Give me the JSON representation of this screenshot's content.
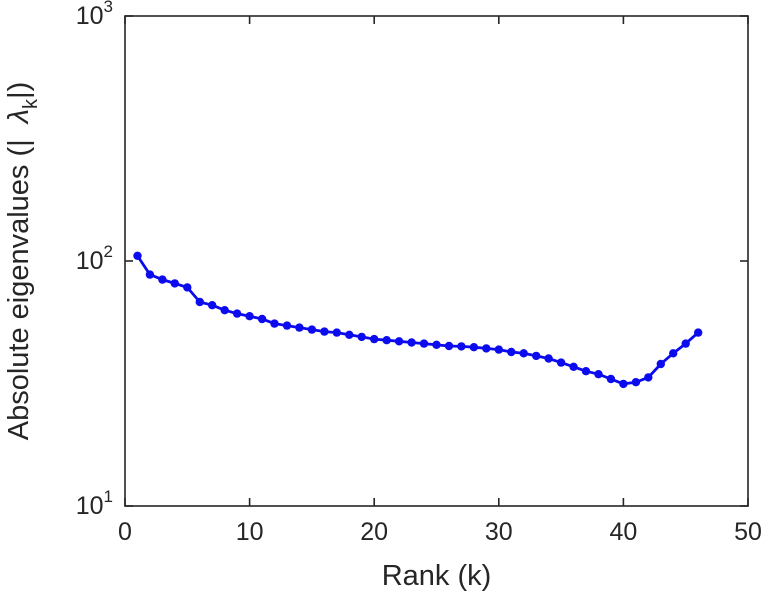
{
  "figure": {
    "background": "#ffffff"
  },
  "chart_data": {
    "type": "line",
    "title": "",
    "xlabel": "Rank (k)",
    "ylabel": "Absolute eigenvalues (|λ_k|)",
    "ylabel_parts": {
      "prefix": "Absolute eigenvalues (|",
      "gap": "  ",
      "symbol": "λ",
      "subscript": "k",
      "suffix": "|)"
    },
    "x_ticks": [
      0,
      10,
      20,
      30,
      40,
      50
    ],
    "y_ticks": [
      {
        "base": "10",
        "exp": "1"
      },
      {
        "base": "10",
        "exp": "2"
      },
      {
        "base": "10",
        "exp": "3"
      }
    ],
    "xlim": [
      0,
      50
    ],
    "ylog_lim": [
      1,
      3
    ],
    "x": [
      1,
      2,
      3,
      4,
      5,
      6,
      7,
      8,
      9,
      10,
      11,
      12,
      13,
      14,
      15,
      16,
      17,
      18,
      19,
      20,
      21,
      22,
      23,
      24,
      25,
      26,
      27,
      28,
      29,
      30,
      31,
      32,
      33,
      34,
      35,
      36,
      37,
      38,
      39,
      40,
      41,
      42,
      43,
      44,
      45,
      46
    ],
    "y": [
      105,
      88,
      84,
      81,
      78,
      68,
      66,
      63,
      61,
      59.5,
      58,
      55.5,
      54.5,
      53.5,
      52.5,
      51.5,
      51,
      50,
      49,
      48,
      47.5,
      47,
      46.5,
      46,
      45.5,
      45,
      44.8,
      44.5,
      44,
      43.5,
      42.5,
      42,
      41,
      40,
      38.5,
      37,
      35.5,
      34.5,
      33,
      31.5,
      32,
      33.5,
      38,
      42,
      46,
      51
    ],
    "line_color": "#0b0bee",
    "axis_color": "#262626",
    "marker": "circle",
    "grid": "off",
    "legend": "none"
  }
}
